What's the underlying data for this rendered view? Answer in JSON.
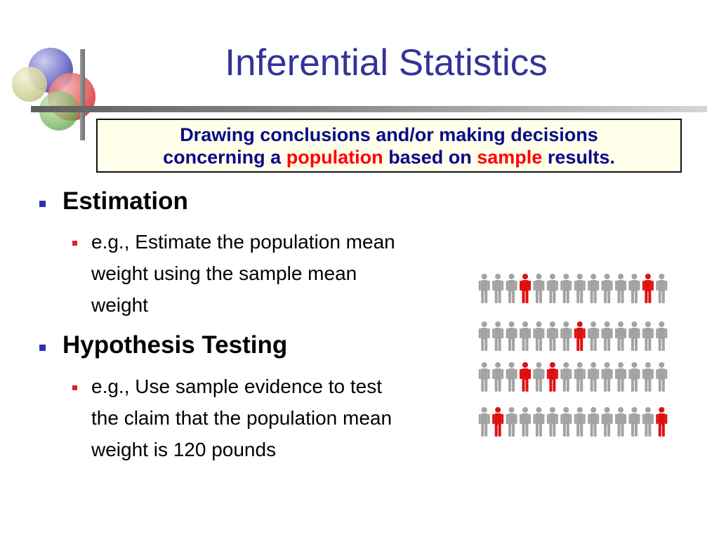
{
  "slide": {
    "title": "Inferential Statistics",
    "definition": {
      "line1": "Drawing conclusions and/or making decisions",
      "line2_a": "concerning a",
      "line2_population": "population",
      "line2_b": "based on",
      "line2_sample": "sample",
      "line2_c": "results."
    },
    "bullets": [
      {
        "heading": "Estimation",
        "sub_lines": [
          "e.g., Estimate the population mean",
          "weight using the sample mean",
          "weight"
        ]
      },
      {
        "heading": "Hypothesis Testing",
        "sub_lines": [
          "e.g., Use sample evidence to test",
          "the claim that the population mean",
          "weight is 120 pounds"
        ]
      }
    ]
  },
  "colors": {
    "title": "#333399",
    "definition_text": "#0a0a8c",
    "highlight": "#ff0000",
    "definition_bg": "#ffffea",
    "bullet_level1": "#2f2fb8",
    "bullet_level2": "#e0201c",
    "person_gray": "#a3a3a3",
    "person_red": "#e01010"
  },
  "people_grid": {
    "rows": 4,
    "columns": 14,
    "sampled": [
      [
        0,
        3
      ],
      [
        0,
        12
      ],
      [
        1,
        7
      ],
      [
        2,
        3
      ],
      [
        2,
        5
      ],
      [
        3,
        1
      ],
      [
        3,
        13
      ]
    ]
  },
  "icons": [
    "overlapping-circles-logo-icon",
    "person-icon"
  ]
}
